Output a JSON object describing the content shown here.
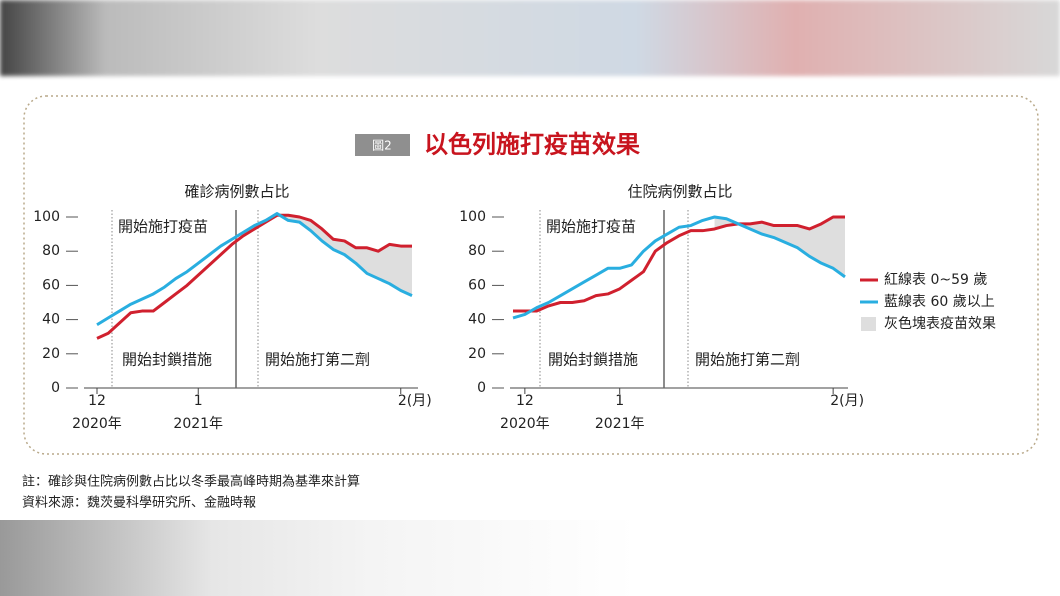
{
  "title_badge": "圖2",
  "title": "以色列施打疫苗效果",
  "chart_data": [
    {
      "type": "line",
      "title": "確診病例數占比",
      "categories": [
        "12",
        null,
        null,
        null,
        null,
        null,
        null,
        null,
        null,
        "1",
        null,
        null,
        null,
        null,
        null,
        null,
        null,
        null,
        null,
        null,
        null,
        null,
        null,
        null,
        null,
        null,
        null,
        "2(月)",
        null
      ],
      "sub_categories": [
        "2020年",
        null,
        null,
        null,
        null,
        null,
        null,
        null,
        null,
        "2021年",
        null,
        null,
        null,
        null,
        null,
        null,
        null,
        null,
        null,
        null,
        null,
        null,
        null,
        null,
        null,
        null,
        null,
        null,
        null
      ],
      "ylim": [
        0,
        100
      ],
      "yticks": [
        0,
        20,
        40,
        60,
        80,
        100
      ],
      "annotations": [
        "開始施打疫苗",
        "開始封鎖措施",
        "開始施打第二劑"
      ],
      "series": [
        {
          "color": "#d0202e",
          "values": [
            29,
            32,
            38,
            44,
            45,
            45,
            50,
            55,
            60,
            66,
            72,
            78,
            84,
            89,
            93,
            97,
            101,
            101,
            100,
            98,
            93,
            87,
            86,
            82,
            82,
            80,
            84,
            83,
            83
          ]
        },
        {
          "color": "#29aee0",
          "values": [
            37,
            41,
            45,
            49,
            52,
            55,
            59,
            64,
            68,
            73,
            78,
            83,
            87,
            91,
            95,
            98,
            102,
            98,
            97,
            92,
            86,
            81,
            78,
            73,
            67,
            64,
            61,
            57,
            54
          ]
        }
      ]
    },
    {
      "type": "line",
      "title": "住院病例數占比",
      "categories": [
        null,
        "12",
        null,
        null,
        null,
        null,
        null,
        null,
        null,
        "1",
        null,
        null,
        null,
        null,
        null,
        null,
        null,
        null,
        null,
        null,
        null,
        null,
        null,
        null,
        null,
        null,
        null,
        "2(月)",
        null
      ],
      "sub_categories": [
        null,
        "2020年",
        null,
        null,
        null,
        null,
        null,
        null,
        null,
        "2021年",
        null,
        null,
        null,
        null,
        null,
        null,
        null,
        null,
        null,
        null,
        null,
        null,
        null,
        null,
        null,
        null,
        null,
        null,
        null
      ],
      "ylim": [
        0,
        100
      ],
      "yticks": [
        0,
        20,
        40,
        60,
        80,
        100
      ],
      "annotations": [
        "開始施打疫苗",
        "開始封鎖措施",
        "開始施打第二劑"
      ],
      "series": [
        {
          "color": "#d0202e",
          "values": [
            45,
            45,
            45,
            48,
            50,
            50,
            51,
            54,
            55,
            58,
            63,
            68,
            80,
            85,
            89,
            92,
            92,
            93,
            95,
            96,
            96,
            97,
            95,
            95,
            95,
            93,
            96,
            100,
            100
          ]
        },
        {
          "color": "#29aee0",
          "values": [
            41,
            43,
            47,
            50,
            54,
            58,
            62,
            66,
            70,
            70,
            72,
            80,
            86,
            90,
            94,
            95,
            98,
            100,
            99,
            96,
            93,
            90,
            88,
            85,
            82,
            77,
            73,
            70,
            65
          ]
        }
      ]
    }
  ],
  "legend": [
    {
      "label": "紅線表 0~59 歲",
      "color": "#d0202e",
      "kind": "line"
    },
    {
      "label": "藍線表 60 歲以上",
      "color": "#29aee0",
      "kind": "line"
    },
    {
      "label": "灰色塊表疫苗效果",
      "color": "#dedede",
      "kind": "area"
    }
  ],
  "notes": [
    "註：確診與住院病例數占比以冬季最高峰時期為基準來計算",
    "資料來源：魏茨曼科學研究所、金融時報"
  ]
}
